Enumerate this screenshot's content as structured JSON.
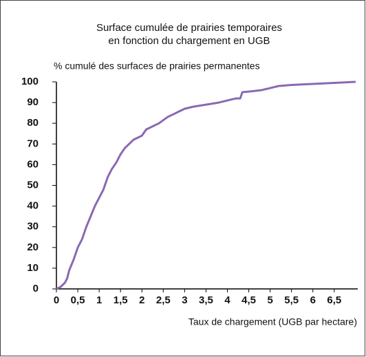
{
  "chart_data": {
    "type": "line",
    "title": [
      "Surface cumulée de prairies temporaires",
      "en fonction du chargement en UGB"
    ],
    "y_label": "% cumulé des surfaces de prairies permanentes",
    "x_label": "Taux de chargement (UGB par hectare)",
    "x": [
      0,
      0.1,
      0.2,
      0.25,
      0.3,
      0.4,
      0.5,
      0.6,
      0.7,
      0.8,
      0.9,
      1.0,
      1.1,
      1.2,
      1.3,
      1.4,
      1.5,
      1.6,
      1.7,
      1.8,
      1.9,
      2.0,
      2.1,
      2.2,
      2.4,
      2.6,
      2.8,
      3.0,
      3.2,
      3.5,
      3.8,
      4.0,
      4.2,
      4.3,
      4.35,
      4.6,
      4.8,
      5.0,
      5.2,
      5.5,
      6.0,
      6.5,
      7.0
    ],
    "series": [
      {
        "color": "#8a68b2",
        "values": [
          0,
          1,
          3,
          5,
          9,
          14,
          20,
          24,
          30,
          35,
          40,
          44,
          48,
          54,
          58,
          61,
          65,
          68,
          70,
          72,
          73,
          74,
          77,
          78,
          80,
          83,
          85,
          87,
          88,
          89,
          90,
          91,
          92,
          92,
          95,
          95.5,
          96,
          97,
          98,
          98.5,
          99,
          99.5,
          100
        ]
      }
    ],
    "xlim": [
      0,
      7.05
    ],
    "ylim": [
      0,
      100
    ],
    "xticks": [
      0,
      {
        "value": 0.5,
        "label": "0,5"
      },
      1,
      {
        "value": 1.5,
        "label": "1,5"
      },
      2,
      {
        "value": 2.5,
        "label": "2,5"
      },
      3,
      {
        "value": 3.5,
        "label": "3,5"
      },
      4,
      {
        "value": 4.5,
        "label": "4,5"
      },
      5,
      {
        "value": 5.5,
        "label": "5,5"
      },
      6,
      {
        "value": 6.5,
        "label": "6,5"
      }
    ],
    "yticks": [
      0,
      10,
      20,
      30,
      40,
      50,
      60,
      70,
      80,
      90,
      100
    ],
    "grid": false
  }
}
